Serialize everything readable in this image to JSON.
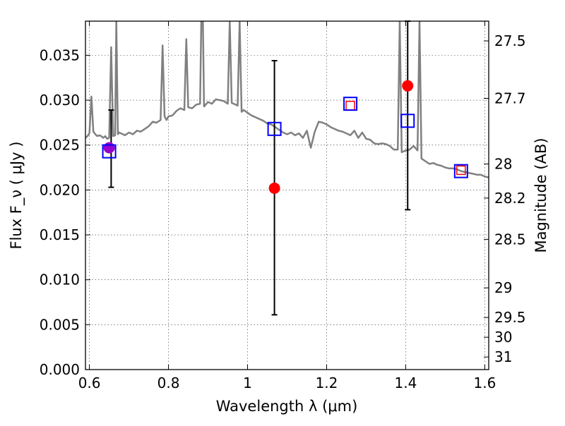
{
  "chart_data": {
    "type": "scatter",
    "xlabel": "Wavelength  λ (μm)",
    "ylabel": "Flux  F_ν  ( μJy )",
    "ylabel_right": "Magnitude (AB)",
    "xlim": [
      0.59,
      1.61
    ],
    "ylim": [
      0.0,
      0.0388
    ],
    "grid": true,
    "x_ticks": [
      {
        "value": 0.6,
        "label": "0.6"
      },
      {
        "value": 0.8,
        "label": "0.8"
      },
      {
        "value": 1.0,
        "label": "1"
      },
      {
        "value": 1.2,
        "label": "1.2"
      },
      {
        "value": 1.4,
        "label": "1.4"
      },
      {
        "value": 1.6,
        "label": "1.6"
      }
    ],
    "y_ticks": [
      {
        "value": 0.0,
        "label": "0.000"
      },
      {
        "value": 0.005,
        "label": "0.005"
      },
      {
        "value": 0.01,
        "label": "0.010"
      },
      {
        "value": 0.015,
        "label": "0.015"
      },
      {
        "value": 0.02,
        "label": "0.020"
      },
      {
        "value": 0.025,
        "label": "0.025"
      },
      {
        "value": 0.03,
        "label": "0.030"
      },
      {
        "value": 0.035,
        "label": "0.035"
      }
    ],
    "mag_ticks": [
      {
        "flux": 0.0366,
        "label": "27.5"
      },
      {
        "flux": 0.0302,
        "label": "27.7"
      },
      {
        "flux": 0.0229,
        "label": "28"
      },
      {
        "flux": 0.0191,
        "label": "28.2"
      },
      {
        "flux": 0.0145,
        "label": "28.5"
      },
      {
        "flux": 0.0091,
        "label": "29"
      },
      {
        "flux": 0.0058,
        "label": "29.5"
      },
      {
        "flux": 0.0036,
        "label": "30"
      },
      {
        "flux": 0.0014,
        "label": "31"
      }
    ],
    "series": [
      {
        "kind": "line",
        "color": "#808080",
        "x": [
          0.59,
          0.595,
          0.6,
          0.605,
          0.61,
          0.615,
          0.62,
          0.625,
          0.63,
          0.635,
          0.64,
          0.645,
          0.65,
          0.655,
          0.66,
          0.665,
          0.668,
          0.672,
          0.675,
          0.68,
          0.69,
          0.7,
          0.71,
          0.72,
          0.73,
          0.74,
          0.75,
          0.76,
          0.77,
          0.78,
          0.785,
          0.79,
          0.795,
          0.8,
          0.81,
          0.82,
          0.83,
          0.84,
          0.845,
          0.85,
          0.86,
          0.87,
          0.88,
          0.883,
          0.887,
          0.89,
          0.9,
          0.91,
          0.92,
          0.93,
          0.94,
          0.95,
          0.955,
          0.96,
          0.97,
          0.975,
          0.98,
          0.985,
          0.99,
          1.0,
          1.01,
          1.02,
          1.03,
          1.04,
          1.05,
          1.06,
          1.07,
          1.08,
          1.09,
          1.1,
          1.11,
          1.12,
          1.13,
          1.14,
          1.15,
          1.16,
          1.17,
          1.18,
          1.19,
          1.2,
          1.21,
          1.22,
          1.23,
          1.24,
          1.25,
          1.26,
          1.27,
          1.28,
          1.29,
          1.3,
          1.31,
          1.32,
          1.33,
          1.34,
          1.35,
          1.36,
          1.37,
          1.38,
          1.385,
          1.39,
          1.4,
          1.41,
          1.42,
          1.43,
          1.435,
          1.44,
          1.45,
          1.46,
          1.47,
          1.48,
          1.49,
          1.5,
          1.51,
          1.52,
          1.53,
          1.54,
          1.55,
          1.56,
          1.57,
          1.58,
          1.59,
          1.6,
          1.61
        ],
        "y": [
          0.0258,
          0.026,
          0.0263,
          0.0304,
          0.0265,
          0.0262,
          0.026,
          0.0261,
          0.026,
          0.0258,
          0.026,
          0.0257,
          0.0258,
          0.0359,
          0.026,
          0.0261,
          0.0388,
          0.0262,
          0.0264,
          0.0263,
          0.0261,
          0.0264,
          0.0262,
          0.0266,
          0.0265,
          0.0268,
          0.0271,
          0.0276,
          0.0275,
          0.0278,
          0.0361,
          0.0282,
          0.0278,
          0.0282,
          0.0283,
          0.0288,
          0.0291,
          0.0289,
          0.0368,
          0.0292,
          0.0291,
          0.0295,
          0.0296,
          0.0388,
          0.0388,
          0.0293,
          0.0298,
          0.0296,
          0.0301,
          0.03,
          0.0299,
          0.0296,
          0.0388,
          0.0297,
          0.0295,
          0.0294,
          0.0388,
          0.0287,
          0.0289,
          0.0286,
          0.0283,
          0.0281,
          0.0279,
          0.0277,
          0.0274,
          0.0273,
          0.027,
          0.0267,
          0.0264,
          0.0262,
          0.0264,
          0.0261,
          0.0263,
          0.0258,
          0.0266,
          0.0247,
          0.0265,
          0.0276,
          0.0275,
          0.0273,
          0.027,
          0.0268,
          0.0266,
          0.0265,
          0.0263,
          0.0261,
          0.0266,
          0.0258,
          0.0264,
          0.0257,
          0.0256,
          0.0252,
          0.0251,
          0.0252,
          0.0251,
          0.0249,
          0.0245,
          0.0245,
          0.0388,
          0.0242,
          0.0244,
          0.0245,
          0.0249,
          0.0244,
          0.0388,
          0.0235,
          0.0232,
          0.0229,
          0.023,
          0.0228,
          0.0227,
          0.0225,
          0.0224,
          0.0224,
          0.0223,
          0.0221,
          0.022,
          0.0219,
          0.0218,
          0.0217,
          0.0217,
          0.0215,
          0.0214
        ]
      },
      {
        "kind": "points",
        "color": "#ff0000",
        "x": [
          1.068,
          1.405
        ],
        "y": [
          0.0202,
          0.0316
        ]
      },
      {
        "kind": "points",
        "color": "#9900cc",
        "x": [
          0.65
        ],
        "y": [
          0.0247
        ]
      },
      {
        "kind": "squares",
        "color": "#ff0000",
        "x": [
          1.26,
          1.54
        ],
        "y": [
          0.0294,
          0.0222
        ]
      },
      {
        "kind": "squares",
        "color": "#0000ff",
        "x": [
          0.65,
          1.068,
          1.26,
          1.405,
          1.54
        ],
        "y": [
          0.0243,
          0.0268,
          0.0296,
          0.0277,
          0.0221
        ]
      }
    ],
    "errorbars": [
      {
        "x": 0.655,
        "low": 0.0203,
        "high": 0.0289
      },
      {
        "x": 1.068,
        "low": 0.0061,
        "high": 0.0344
      },
      {
        "x": 1.405,
        "low": 0.0178,
        "high": 0.0388
      }
    ]
  }
}
